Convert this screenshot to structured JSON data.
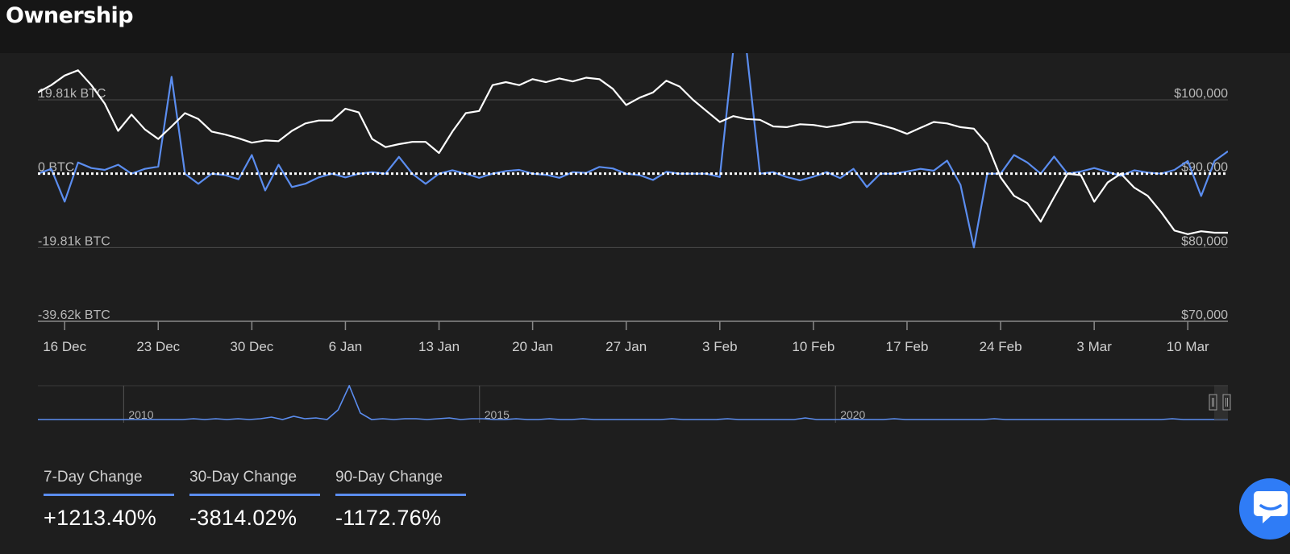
{
  "header": {
    "title": "Ownership"
  },
  "colors": {
    "change_series": "#5b8def",
    "price_series": "#ffffff",
    "zero_line": "#ffffff",
    "grid": "#4a4a4a",
    "chat_button": "#2f7cf6"
  },
  "icons": {
    "chat": "chat-bubble-icon",
    "handle": "navigator-handle-icon"
  },
  "chart_data": {
    "type": "line",
    "x_tick_labels": [
      "16 Dec",
      "23 Dec",
      "30 Dec",
      "6 Jan",
      "13 Jan",
      "20 Jan",
      "27 Jan",
      "3 Feb",
      "10 Feb",
      "17 Feb",
      "24 Feb",
      "3 Mar",
      "10 Mar"
    ],
    "x_tick_index": [
      2,
      9,
      16,
      23,
      30,
      37,
      44,
      51,
      58,
      65,
      72,
      79,
      86
    ],
    "x_count": 90,
    "y_left": {
      "ticks": [
        19810,
        0,
        -19810,
        -39620
      ],
      "labels": [
        "19.81k BTC",
        "0 BTC",
        "-19.81k BTC",
        "-39.62k BTC"
      ],
      "range": [
        -39620,
        19810
      ]
    },
    "y_right": {
      "ticks": [
        100000,
        90000,
        80000,
        70000
      ],
      "labels": [
        "$100,000",
        "$90,000",
        "$80,000",
        "$70,000"
      ],
      "range": [
        70000,
        100000
      ]
    },
    "grid": true,
    "zero_line": "dotted",
    "series": [
      {
        "axis": "left",
        "values": [
          0,
          1300,
          -7500,
          3000,
          1500,
          1000,
          2400,
          0,
          1300,
          1900,
          26000,
          0,
          -2700,
          0,
          -400,
          -1500,
          5000,
          -4500,
          2400,
          -3600,
          -2700,
          -1000,
          0,
          -1000,
          0,
          400,
          0,
          4500,
          0,
          -2700,
          0,
          900,
          0,
          -1100,
          0,
          700,
          1000,
          0,
          -300,
          -1100,
          400,
          200,
          1800,
          1400,
          0,
          -400,
          -1700,
          500,
          0,
          0,
          0,
          -900,
          33000,
          33000,
          0,
          400,
          -900,
          -1800,
          -800,
          400,
          -1200,
          1300,
          -3600,
          0,
          0,
          600,
          1300,
          800,
          3500,
          -3000,
          -19810,
          0,
          0,
          5000,
          3000,
          0,
          4600,
          0,
          600,
          1500,
          500,
          -600,
          900,
          300,
          0,
          1000,
          3400,
          -6000,
          3400,
          6000
        ],
        "notes": "net ownership change (BTC)"
      },
      {
        "axis": "right",
        "values": [
          101000,
          102000,
          103300,
          104000,
          102000,
          99500,
          95800,
          98000,
          96000,
          94700,
          96400,
          98200,
          97400,
          95700,
          95300,
          94800,
          94200,
          94500,
          94400,
          95800,
          96800,
          97200,
          97200,
          98800,
          98300,
          94700,
          93600,
          94000,
          94300,
          94300,
          92800,
          95700,
          98200,
          98500,
          102000,
          102400,
          102000,
          102800,
          102400,
          102900,
          102500,
          103000,
          102800,
          101500,
          99300,
          100300,
          101000,
          102600,
          101800,
          100000,
          98500,
          97000,
          97800,
          97400,
          97300,
          96400,
          96300,
          96700,
          96600,
          96300,
          96600,
          97000,
          97000,
          96600,
          96100,
          95400,
          96200,
          97000,
          96800,
          96300,
          96100,
          94000,
          89500,
          87000,
          86000,
          83500,
          86800,
          90000,
          89800,
          86200,
          88800,
          90000,
          88100,
          87000,
          84800,
          82300,
          81800,
          82200,
          82000,
          82000
        ],
        "notes": "price (USD)"
      }
    ],
    "navigator": {
      "labels": [
        "2010",
        "2015",
        "2020"
      ],
      "label_index": [
        8,
        40,
        72
      ],
      "count": 108,
      "values": [
        0,
        0,
        0,
        0,
        0,
        0,
        0,
        0,
        0,
        0,
        0,
        0,
        0,
        0,
        1,
        0,
        1,
        0,
        1,
        0,
        1,
        3,
        0,
        4,
        1,
        2,
        0,
        12,
        42,
        8,
        0,
        1,
        0,
        1,
        1,
        0,
        1,
        2,
        0,
        1,
        1,
        0,
        0,
        1,
        0,
        0,
        1,
        0,
        0,
        1,
        0,
        0,
        0,
        0,
        0,
        0,
        0,
        1,
        0,
        0,
        0,
        0,
        1,
        0,
        0,
        0,
        0,
        0,
        0,
        2,
        0,
        0,
        0,
        0,
        0,
        0,
        0,
        1,
        0,
        0,
        0,
        0,
        0,
        0,
        0,
        0,
        1,
        0,
        0,
        0,
        0,
        0,
        0,
        0,
        0,
        0,
        0,
        0,
        0,
        0,
        0,
        0,
        1,
        0,
        0,
        0,
        0,
        0
      ]
    }
  },
  "stats": [
    {
      "label": "7-Day Change",
      "value": "+1213.40%"
    },
    {
      "label": "30-Day Change",
      "value": "-3814.02%"
    },
    {
      "label": "90-Day Change",
      "value": "-1172.76%"
    }
  ]
}
